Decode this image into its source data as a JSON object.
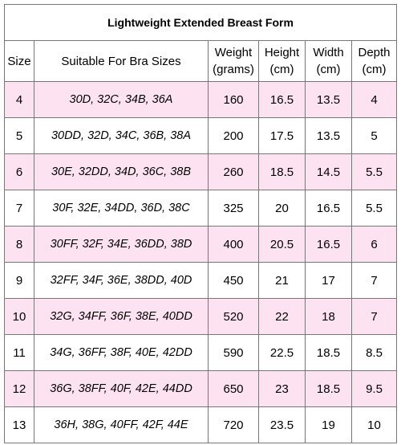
{
  "table": {
    "title": "Lightweight Extended Breast Form",
    "headers": {
      "size": "Size",
      "bra": "Suitable For Bra Sizes",
      "weight": [
        "Weight",
        "(grams)"
      ],
      "height": [
        "Height",
        "(cm)"
      ],
      "width": [
        "Width",
        "(cm)"
      ],
      "depth": [
        "Depth",
        "(cm)"
      ]
    },
    "rows": [
      {
        "size": "4",
        "bra": "30D, 32C, 34B, 36A",
        "weight": "160",
        "height": "16.5",
        "width": "13.5",
        "depth": "4"
      },
      {
        "size": "5",
        "bra": "30DD, 32D, 34C, 36B, 38A",
        "weight": "200",
        "height": "17.5",
        "width": "13.5",
        "depth": "5"
      },
      {
        "size": "6",
        "bra": "30E, 32DD, 34D, 36C, 38B",
        "weight": "260",
        "height": "18.5",
        "width": "14.5",
        "depth": "5.5"
      },
      {
        "size": "7",
        "bra": "30F, 32E, 34DD, 36D, 38C",
        "weight": "325",
        "height": "20",
        "width": "16.5",
        "depth": "5.5"
      },
      {
        "size": "8",
        "bra": "30FF, 32F, 34E, 36DD, 38D",
        "weight": "400",
        "height": "20.5",
        "width": "16.5",
        "depth": "6"
      },
      {
        "size": "9",
        "bra": "32FF, 34F, 36E, 38DD, 40D",
        "weight": "450",
        "height": "21",
        "width": "17",
        "depth": "7"
      },
      {
        "size": "10",
        "bra": "32G, 34FF, 36F, 38E, 40DD",
        "weight": "520",
        "height": "22",
        "width": "18",
        "depth": "7"
      },
      {
        "size": "11",
        "bra": "34G, 36FF, 38F, 40E, 42DD",
        "weight": "590",
        "height": "22.5",
        "width": "18.5",
        "depth": "8.5"
      },
      {
        "size": "12",
        "bra": "36G, 38FF, 40F, 42E, 44DD",
        "weight": "650",
        "height": "23",
        "width": "18.5",
        "depth": "9.5"
      },
      {
        "size": "13",
        "bra": "36H, 38G, 40FF, 42F, 44E",
        "weight": "720",
        "height": "23.5",
        "width": "19",
        "depth": "10"
      }
    ],
    "stripe_color": "#fde3f1",
    "border_color": "#777777"
  }
}
